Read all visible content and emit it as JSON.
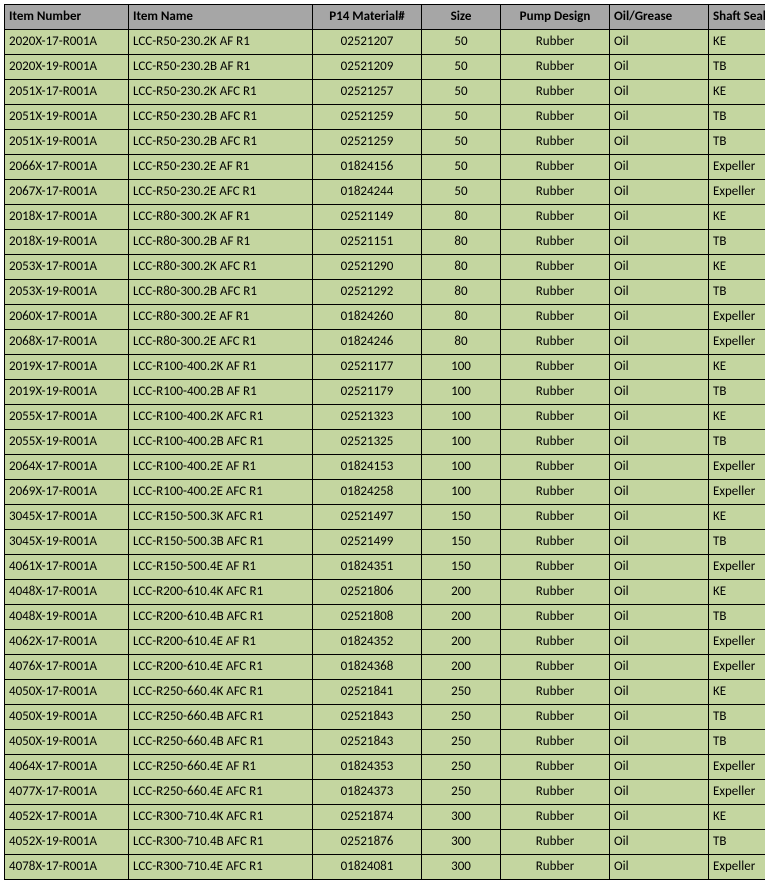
{
  "table": {
    "columns": [
      {
        "key": "item_number",
        "label": "Item Number",
        "class": "col-item-number"
      },
      {
        "key": "item_name",
        "label": "Item Name",
        "class": "col-item-name"
      },
      {
        "key": "material",
        "label": "P14 Material#",
        "class": "col-material"
      },
      {
        "key": "size",
        "label": "Size",
        "class": "col-size"
      },
      {
        "key": "pump",
        "label": "Pump Design",
        "class": "col-pump"
      },
      {
        "key": "oil",
        "label": "Oil/Grease",
        "class": "col-oil"
      },
      {
        "key": "seal",
        "label": "Shaft Seal",
        "class": "col-seal"
      }
    ],
    "rows": [
      {
        "item_number": "2020X-17-R001A",
        "item_name": "LCC-R50-230.2K AF R1",
        "material": "02521207",
        "size": "50",
        "pump": "Rubber",
        "oil": "Oil",
        "seal": "KE"
      },
      {
        "item_number": "2020X-19-R001A",
        "item_name": "LCC-R50-230.2B AF R1",
        "material": "02521209",
        "size": "50",
        "pump": "Rubber",
        "oil": "Oil",
        "seal": "TB"
      },
      {
        "item_number": "2051X-17-R001A",
        "item_name": "LCC-R50-230.2K AFC R1",
        "material": "02521257",
        "size": "50",
        "pump": "Rubber",
        "oil": "Oil",
        "seal": "KE"
      },
      {
        "item_number": "2051X-19-R001A",
        "item_name": "LCC-R50-230.2B AFC R1",
        "material": "02521259",
        "size": "50",
        "pump": "Rubber",
        "oil": "Oil",
        "seal": "TB"
      },
      {
        "item_number": "2051X-19-R001A",
        "item_name": "LCC-R50-230.2B AFC R1",
        "material": "02521259",
        "size": "50",
        "pump": "Rubber",
        "oil": "Oil",
        "seal": "TB"
      },
      {
        "item_number": "2066X-17-R001A",
        "item_name": "LCC-R50-230.2E AF R1",
        "material": "01824156",
        "size": "50",
        "pump": "Rubber",
        "oil": "Oil",
        "seal": "Expeller"
      },
      {
        "item_number": "2067X-17-R001A",
        "item_name": "LCC-R50-230.2E AFC R1",
        "material": "01824244",
        "size": "50",
        "pump": "Rubber",
        "oil": "Oil",
        "seal": "Expeller"
      },
      {
        "item_number": "2018X-17-R001A",
        "item_name": "LCC-R80-300.2K AF R1",
        "material": "02521149",
        "size": "80",
        "pump": "Rubber",
        "oil": "Oil",
        "seal": "KE"
      },
      {
        "item_number": "2018X-19-R001A",
        "item_name": "LCC-R80-300.2B AF R1",
        "material": "02521151",
        "size": "80",
        "pump": "Rubber",
        "oil": "Oil",
        "seal": "TB"
      },
      {
        "item_number": "2053X-17-R001A",
        "item_name": "LCC-R80-300.2K AFC R1",
        "material": "02521290",
        "size": "80",
        "pump": "Rubber",
        "oil": "Oil",
        "seal": "KE"
      },
      {
        "item_number": "2053X-19-R001A",
        "item_name": "LCC-R80-300.2B AFC R1",
        "material": "02521292",
        "size": "80",
        "pump": "Rubber",
        "oil": "Oil",
        "seal": "TB"
      },
      {
        "item_number": "2060X-17-R001A",
        "item_name": "LCC-R80-300.2E AF R1",
        "material": "01824260",
        "size": "80",
        "pump": "Rubber",
        "oil": "Oil",
        "seal": "Expeller"
      },
      {
        "item_number": "2068X-17-R001A",
        "item_name": "LCC-R80-300.2E AFC R1",
        "material": "01824246",
        "size": "80",
        "pump": "Rubber",
        "oil": "Oil",
        "seal": "Expeller"
      },
      {
        "item_number": "2019X-17-R001A",
        "item_name": "LCC-R100-400.2K AF R1",
        "material": "02521177",
        "size": "100",
        "pump": "Rubber",
        "oil": "Oil",
        "seal": "KE"
      },
      {
        "item_number": "2019X-19-R001A",
        "item_name": "LCC-R100-400.2B AF R1",
        "material": "02521179",
        "size": "100",
        "pump": "Rubber",
        "oil": "Oil",
        "seal": "TB"
      },
      {
        "item_number": "2055X-17-R001A",
        "item_name": "LCC-R100-400.2K AFC R1",
        "material": "02521323",
        "size": "100",
        "pump": "Rubber",
        "oil": "Oil",
        "seal": "KE"
      },
      {
        "item_number": "2055X-19-R001A",
        "item_name": "LCC-R100-400.2B AFC R1",
        "material": "02521325",
        "size": "100",
        "pump": "Rubber",
        "oil": "Oil",
        "seal": "TB"
      },
      {
        "item_number": "2064X-17-R001A",
        "item_name": "LCC-R100-400.2E AF R1",
        "material": "01824153",
        "size": "100",
        "pump": "Rubber",
        "oil": "Oil",
        "seal": "Expeller"
      },
      {
        "item_number": "2069X-17-R001A",
        "item_name": "LCC-R100-400.2E AFC R1",
        "material": "01824258",
        "size": "100",
        "pump": "Rubber",
        "oil": "Oil",
        "seal": "Expeller"
      },
      {
        "item_number": "3045X-17-R001A",
        "item_name": "LCC-R150-500.3K AFC R1",
        "material": "02521497",
        "size": "150",
        "pump": "Rubber",
        "oil": "Oil",
        "seal": "KE"
      },
      {
        "item_number": "3045X-19-R001A",
        "item_name": "LCC-R150-500.3B AFC R1",
        "material": "02521499",
        "size": "150",
        "pump": "Rubber",
        "oil": "Oil",
        "seal": "TB"
      },
      {
        "item_number": "4061X-17-R001A",
        "item_name": "LCC-R150-500.4E AF R1",
        "material": "01824351",
        "size": "150",
        "pump": "Rubber",
        "oil": "Oil",
        "seal": "Expeller"
      },
      {
        "item_number": "4048X-17-R001A",
        "item_name": "LCC-R200-610.4K AFC R1",
        "material": "02521806",
        "size": "200",
        "pump": "Rubber",
        "oil": "Oil",
        "seal": "KE"
      },
      {
        "item_number": "4048X-19-R001A",
        "item_name": "LCC-R200-610.4B AFC R1",
        "material": "02521808",
        "size": "200",
        "pump": "Rubber",
        "oil": "Oil",
        "seal": "TB"
      },
      {
        "item_number": "4062X-17-R001A",
        "item_name": "LCC-R200-610.4E AF R1",
        "material": "01824352",
        "size": "200",
        "pump": "Rubber",
        "oil": "Oil",
        "seal": "Expeller"
      },
      {
        "item_number": "4076X-17-R001A",
        "item_name": "LCC-R200-610.4E AFC R1",
        "material": "01824368",
        "size": "200",
        "pump": "Rubber",
        "oil": "Oil",
        "seal": "Expeller"
      },
      {
        "item_number": "4050X-17-R001A",
        "item_name": "LCC-R250-660.4K AFC R1",
        "material": "02521841",
        "size": "250",
        "pump": "Rubber",
        "oil": "Oil",
        "seal": "KE"
      },
      {
        "item_number": "4050X-19-R001A",
        "item_name": "LCC-R250-660.4B AFC R1",
        "material": "02521843",
        "size": "250",
        "pump": "Rubber",
        "oil": "Oil",
        "seal": "TB"
      },
      {
        "item_number": "4050X-19-R001A",
        "item_name": "LCC-R250-660.4B AFC R1",
        "material": "02521843",
        "size": "250",
        "pump": "Rubber",
        "oil": "Oil",
        "seal": "TB"
      },
      {
        "item_number": "4064X-17-R001A",
        "item_name": "LCC-R250-660.4E AF R1",
        "material": "01824353",
        "size": "250",
        "pump": "Rubber",
        "oil": "Oil",
        "seal": "Expeller"
      },
      {
        "item_number": "4077X-17-R001A",
        "item_name": "LCC-R250-660.4E AFC R1",
        "material": "01824373",
        "size": "250",
        "pump": "Rubber",
        "oil": "Oil",
        "seal": "Expeller"
      },
      {
        "item_number": "4052X-17-R001A",
        "item_name": "LCC-R300-710.4K AFC R1",
        "material": "02521874",
        "size": "300",
        "pump": "Rubber",
        "oil": "Oil",
        "seal": "KE"
      },
      {
        "item_number": "4052X-19-R001A",
        "item_name": "LCC-R300-710.4B AFC R1",
        "material": "02521876",
        "size": "300",
        "pump": "Rubber",
        "oil": "Oil",
        "seal": "TB"
      },
      {
        "item_number": "4078X-17-R001A",
        "item_name": "LCC-R300-710.4E AFC R1",
        "material": "01824081",
        "size": "300",
        "pump": "Rubber",
        "oil": "Oil",
        "seal": "Expeller"
      }
    ]
  }
}
